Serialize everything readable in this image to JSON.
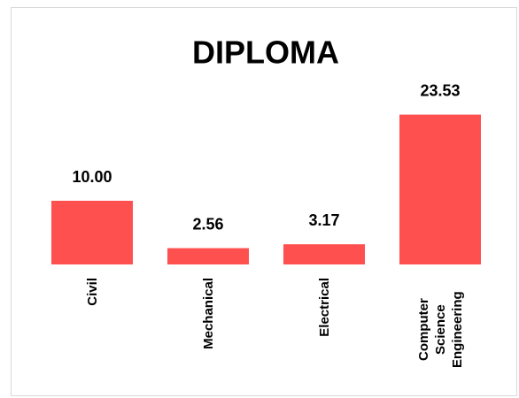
{
  "chart_data": {
    "type": "bar",
    "title": "DIPLOMA",
    "categories": [
      "Civil",
      "Mechanical",
      "Electrical",
      "Computer Science Engineering"
    ],
    "values": [
      10.0,
      2.56,
      3.17,
      23.53
    ],
    "value_labels": [
      "10.00",
      "2.56",
      "3.17",
      "23.53"
    ],
    "color": "#ff5050"
  }
}
